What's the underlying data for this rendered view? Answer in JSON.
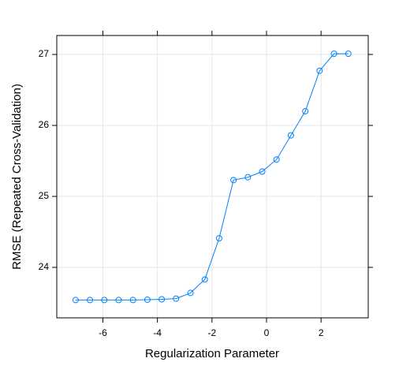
{
  "chart_data": {
    "type": "line",
    "xlabel": "Regularization Parameter",
    "ylabel": "RMSE (Repeated Cross-Validation)",
    "x": [
      -7,
      -6.474,
      -5.947,
      -5.421,
      -4.895,
      -4.368,
      -3.842,
      -3.316,
      -2.789,
      -2.263,
      -1.737,
      -1.211,
      -0.684,
      -0.158,
      0.368,
      0.895,
      1.421,
      1.947,
      2.474,
      3
    ],
    "series": [
      {
        "name": "RMSE",
        "color": "#0080ff",
        "values": [
          23.54,
          23.54,
          23.54,
          23.54,
          23.54,
          23.545,
          23.55,
          23.56,
          23.64,
          23.83,
          24.41,
          25.23,
          25.27,
          25.35,
          25.52,
          25.86,
          26.2,
          26.77,
          27.01,
          27.01
        ]
      }
    ],
    "xlim": [
      -7.69,
      3.73
    ],
    "xticks": [
      -6,
      -4,
      -2,
      0,
      2
    ],
    "ylim": [
      23.289,
      27.267
    ],
    "yticks": [
      24,
      25,
      26,
      27
    ],
    "grid": true
  }
}
